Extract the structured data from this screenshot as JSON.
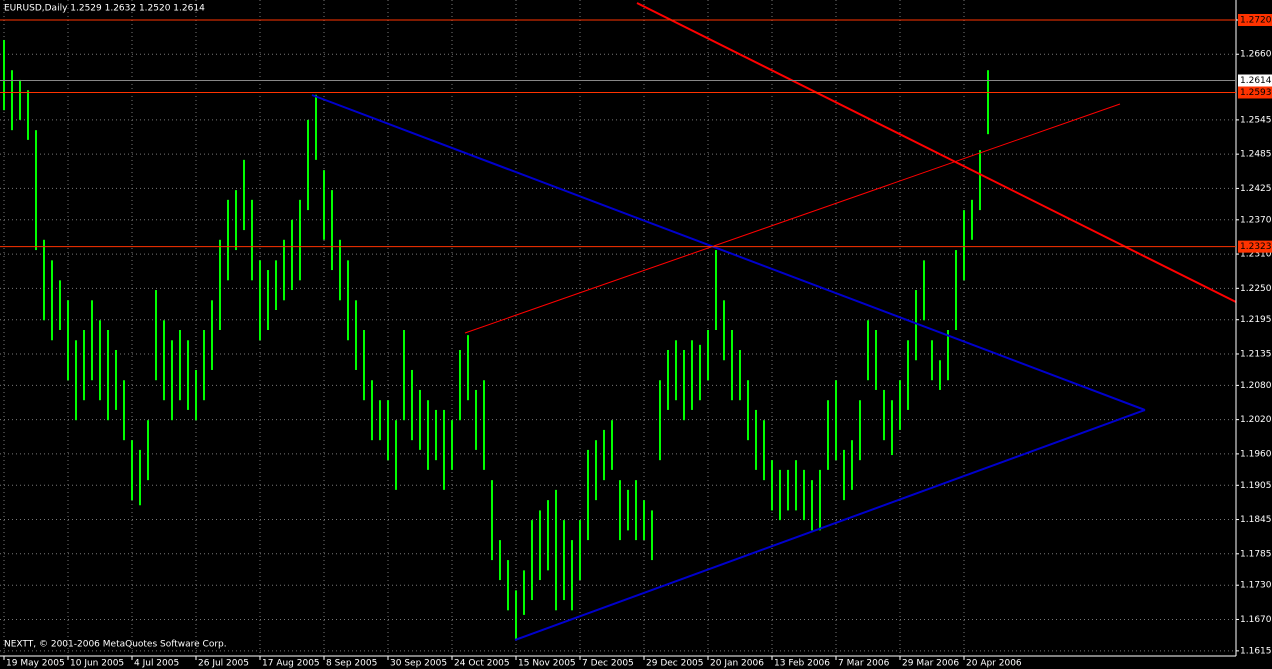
{
  "chart_data": {
    "type": "ohlc",
    "title": "EURUSD,Daily  1.2529 1.2632 1.2520 1.2614",
    "footer": "NEXTT, © 2001-2006 MetaQuotes Software Corp.",
    "color": "#00ff00",
    "grid": true,
    "ylim": [
      1.1606,
      1.2755
    ],
    "yticks": [
      {
        "value": 1.272,
        "label": "1.2720"
      },
      {
        "value": 1.266,
        "label": "1.2660"
      },
      1.2545,
      1.2485,
      1.2425,
      {
        "value": 1.237,
        "label": "1.2370"
      },
      {
        "value": 1.231,
        "label": "1.2310"
      },
      {
        "value": 1.225,
        "label": "1.2250"
      },
      1.2195,
      1.2135,
      {
        "value": 1.208,
        "label": "1.2080"
      },
      {
        "value": 1.202,
        "label": "1.2020"
      },
      {
        "value": 1.196,
        "label": "1.1960"
      },
      1.1905,
      1.1845,
      1.1785,
      {
        "value": 1.173,
        "label": "1.1730"
      },
      {
        "value": 1.167,
        "label": "1.1670"
      },
      1.1615
    ],
    "hlines": [
      {
        "value": 1.272,
        "label": "1.2720"
      },
      1.2593,
      1.2323
    ],
    "hline_color": "#ff3300",
    "last_price": 1.2614,
    "categories": [
      "19 May 2005",
      null,
      null,
      null,
      null,
      null,
      null,
      null,
      "10 Jun 2005",
      null,
      null,
      null,
      null,
      null,
      null,
      null,
      "4 Jul 2005",
      null,
      null,
      null,
      null,
      null,
      null,
      null,
      "26 Jul 2005",
      null,
      null,
      null,
      null,
      null,
      null,
      null,
      "17 Aug 2005",
      null,
      null,
      null,
      null,
      null,
      null,
      null,
      "8 Sep 2005",
      null,
      null,
      null,
      null,
      null,
      null,
      null,
      "30 Sep 2005",
      null,
      null,
      null,
      null,
      null,
      null,
      null,
      "24 Oct 2005",
      null,
      null,
      null,
      null,
      null,
      null,
      null,
      "15 Nov 2005",
      null,
      null,
      null,
      null,
      null,
      null,
      null,
      "7 Dec 2005",
      null,
      null,
      null,
      null,
      null,
      null,
      null,
      "29 Dec 2005",
      null,
      null,
      null,
      null,
      null,
      null,
      null,
      "20 Jan 2006",
      null,
      null,
      null,
      null,
      null,
      null,
      null,
      "13 Feb 2006",
      null,
      null,
      null,
      null,
      null,
      null,
      null,
      "7 Mar 2006",
      null,
      null,
      null,
      null,
      null,
      null,
      null,
      "29 Mar 2006",
      null,
      null,
      null,
      null,
      null,
      null,
      null,
      "20 Apr 2006",
      null,
      null,
      null
    ],
    "high": [
      1.2685,
      1.2632,
      1.2615,
      1.2597,
      1.2527,
      1.2335,
      1.2299,
      1.2264,
      1.2229,
      1.2159,
      1.2177,
      1.2229,
      1.2194,
      1.2177,
      1.2142,
      1.2089,
      1.1984,
      1.1967,
      1.2019,
      1.2247,
      1.2194,
      1.2159,
      1.2177,
      1.2159,
      1.2107,
      1.2177,
      1.2229,
      1.2335,
      1.2405,
      1.2422,
      1.2475,
      1.2405,
      1.2299,
      1.2282,
      1.2299,
      1.2335,
      1.237,
      1.2405,
      1.2545,
      1.2589,
      1.2457,
      1.2422,
      1.2335,
      1.2299,
      1.2229,
      1.2177,
      1.2089,
      1.2054,
      1.2054,
      1.2019,
      1.2177,
      1.2107,
      1.2072,
      1.2054,
      1.2037,
      1.2037,
      1.2019,
      1.2142,
      1.2168,
      1.2072,
      1.2089,
      1.1914,
      1.1809,
      1.1774,
      1.1721,
      1.1756,
      1.1844,
      1.1861,
      1.1879,
      1.1897,
      1.1844,
      1.1809,
      1.1844,
      1.1967,
      1.1984,
      1.2002,
      1.2019,
      1.1914,
      1.1897,
      1.1914,
      1.1879,
      1.1861,
      1.2089,
      1.2142,
      1.2159,
      1.2142,
      1.2159,
      1.2151,
      1.2177,
      1.2317,
      1.2229,
      1.2177,
      1.2142,
      1.2089,
      1.2037,
      1.2019,
      1.1949,
      1.1932,
      1.1932,
      1.1949,
      1.1932,
      1.1914,
      1.1932,
      1.2054,
      1.2089,
      1.1967,
      1.1984,
      1.2054,
      1.2194,
      1.2177,
      1.2072,
      1.2054,
      1.2089,
      1.2159,
      1.2247,
      1.2299,
      1.2159,
      1.2124,
      1.2177,
      1.2317,
      1.2387,
      1.2405,
      1.2492,
      1.2632
    ],
    "low": [
      1.2562,
      1.2527,
      1.2545,
      1.251,
      1.2317,
      1.2194,
      1.2159,
      1.2177,
      1.2089,
      1.2019,
      1.2054,
      1.2089,
      1.2054,
      1.2019,
      1.2037,
      1.1984,
      1.1879,
      1.187,
      1.1914,
      1.2089,
      1.2054,
      1.2019,
      1.2054,
      1.2037,
      1.2019,
      1.2054,
      1.2107,
      1.2177,
      1.2264,
      1.2317,
      1.2352,
      1.2264,
      1.2159,
      1.2177,
      1.2212,
      1.2229,
      1.2247,
      1.2264,
      1.2387,
      1.2475,
      1.2335,
      1.2282,
      1.2229,
      1.2159,
      1.2107,
      1.2054,
      1.1984,
      1.1984,
      1.1949,
      1.1897,
      1.2019,
      1.1984,
      1.1967,
      1.1932,
      1.1949,
      1.1897,
      1.1932,
      1.2019,
      1.2054,
      1.1967,
      1.1932,
      1.1774,
      1.1739,
      1.1686,
      1.1634,
      1.1678,
      1.1704,
      1.1739,
      1.1756,
      1.1686,
      1.1704,
      1.1686,
      1.1739,
      1.1809,
      1.1879,
      1.1914,
      1.1932,
      1.1809,
      1.1826,
      1.1809,
      1.1809,
      1.1774,
      1.1949,
      1.2037,
      1.2054,
      1.2019,
      1.2037,
      1.2054,
      1.2089,
      1.2177,
      1.2124,
      1.2054,
      1.2054,
      1.1984,
      1.1932,
      1.1914,
      1.1861,
      1.1844,
      1.1861,
      1.1861,
      1.1844,
      1.1826,
      1.1826,
      1.1932,
      1.1949,
      1.1879,
      1.1897,
      1.1949,
      1.2089,
      1.2072,
      1.1984,
      1.1958,
      1.2002,
      1.2037,
      1.2124,
      1.2194,
      1.2089,
      1.2072,
      1.2089,
      1.2177,
      1.2264,
      1.2335,
      1.2387,
      1.252
    ]
  }
}
